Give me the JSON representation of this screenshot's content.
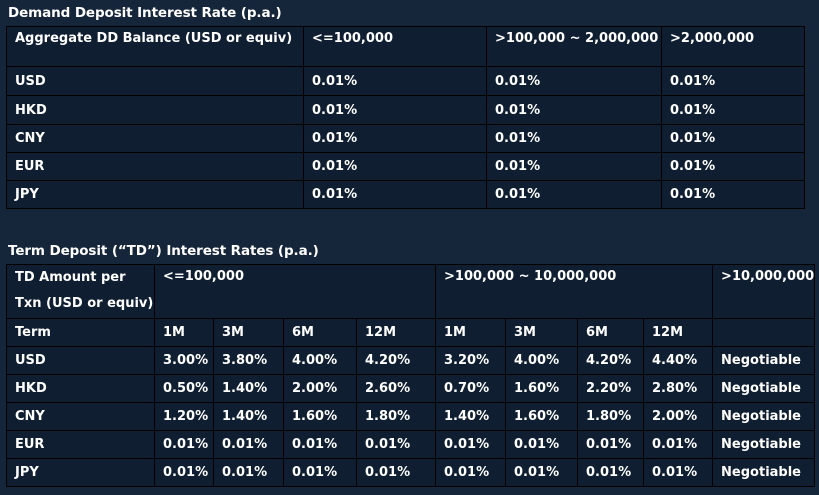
{
  "dd": {
    "title": "Demand Deposit Interest Rate (p.a.)",
    "headers": [
      "Aggregate DD Balance (USD or equiv)",
      "<=100,000",
      ">100,000 ~ 2,000,000",
      ">2,000,000"
    ],
    "rows": [
      [
        "USD",
        "0.01%",
        "0.01%",
        "0.01%"
      ],
      [
        "HKD",
        "0.01%",
        "0.01%",
        "0.01%"
      ],
      [
        "CNY",
        "0.01%",
        "0.01%",
        "0.01%"
      ],
      [
        "EUR",
        "0.01%",
        "0.01%",
        "0.01%"
      ],
      [
        "JPY",
        "0.01%",
        "0.01%",
        "0.01%"
      ]
    ]
  },
  "td": {
    "title": "Term Deposit (“TD”) Interest Rates (p.a.)",
    "header_label_line1": "TD Amount per",
    "header_label_line2": "Txn (USD or equiv)",
    "tiers": [
      "<=100,000",
      ">100,000 ~ 10,000,000",
      ">10,000,000"
    ],
    "term_label": "Term",
    "terms": [
      "1M",
      "3M",
      "6M",
      "12M",
      "1M",
      "3M",
      "6M",
      "12M",
      ""
    ],
    "rows": [
      [
        "USD",
        "3.00%",
        "3.80%",
        "4.00%",
        "4.20%",
        "3.20%",
        "4.00%",
        "4.20%",
        "4.40%",
        "Negotiable"
      ],
      [
        "HKD",
        "0.50%",
        "1.40%",
        "2.00%",
        "2.60%",
        "0.70%",
        "1.60%",
        "2.20%",
        "2.80%",
        "Negotiable"
      ],
      [
        "CNY",
        "1.20%",
        "1.40%",
        "1.60%",
        "1.80%",
        "1.40%",
        "1.60%",
        "1.80%",
        "2.00%",
        "Negotiable"
      ],
      [
        "EUR",
        "0.01%",
        "0.01%",
        "0.01%",
        "0.01%",
        "0.01%",
        "0.01%",
        "0.01%",
        "0.01%",
        "Negotiable"
      ],
      [
        "JPY",
        "0.01%",
        "0.01%",
        "0.01%",
        "0.01%",
        "0.01%",
        "0.01%",
        "0.01%",
        "0.01%",
        "Negotiable"
      ]
    ]
  }
}
